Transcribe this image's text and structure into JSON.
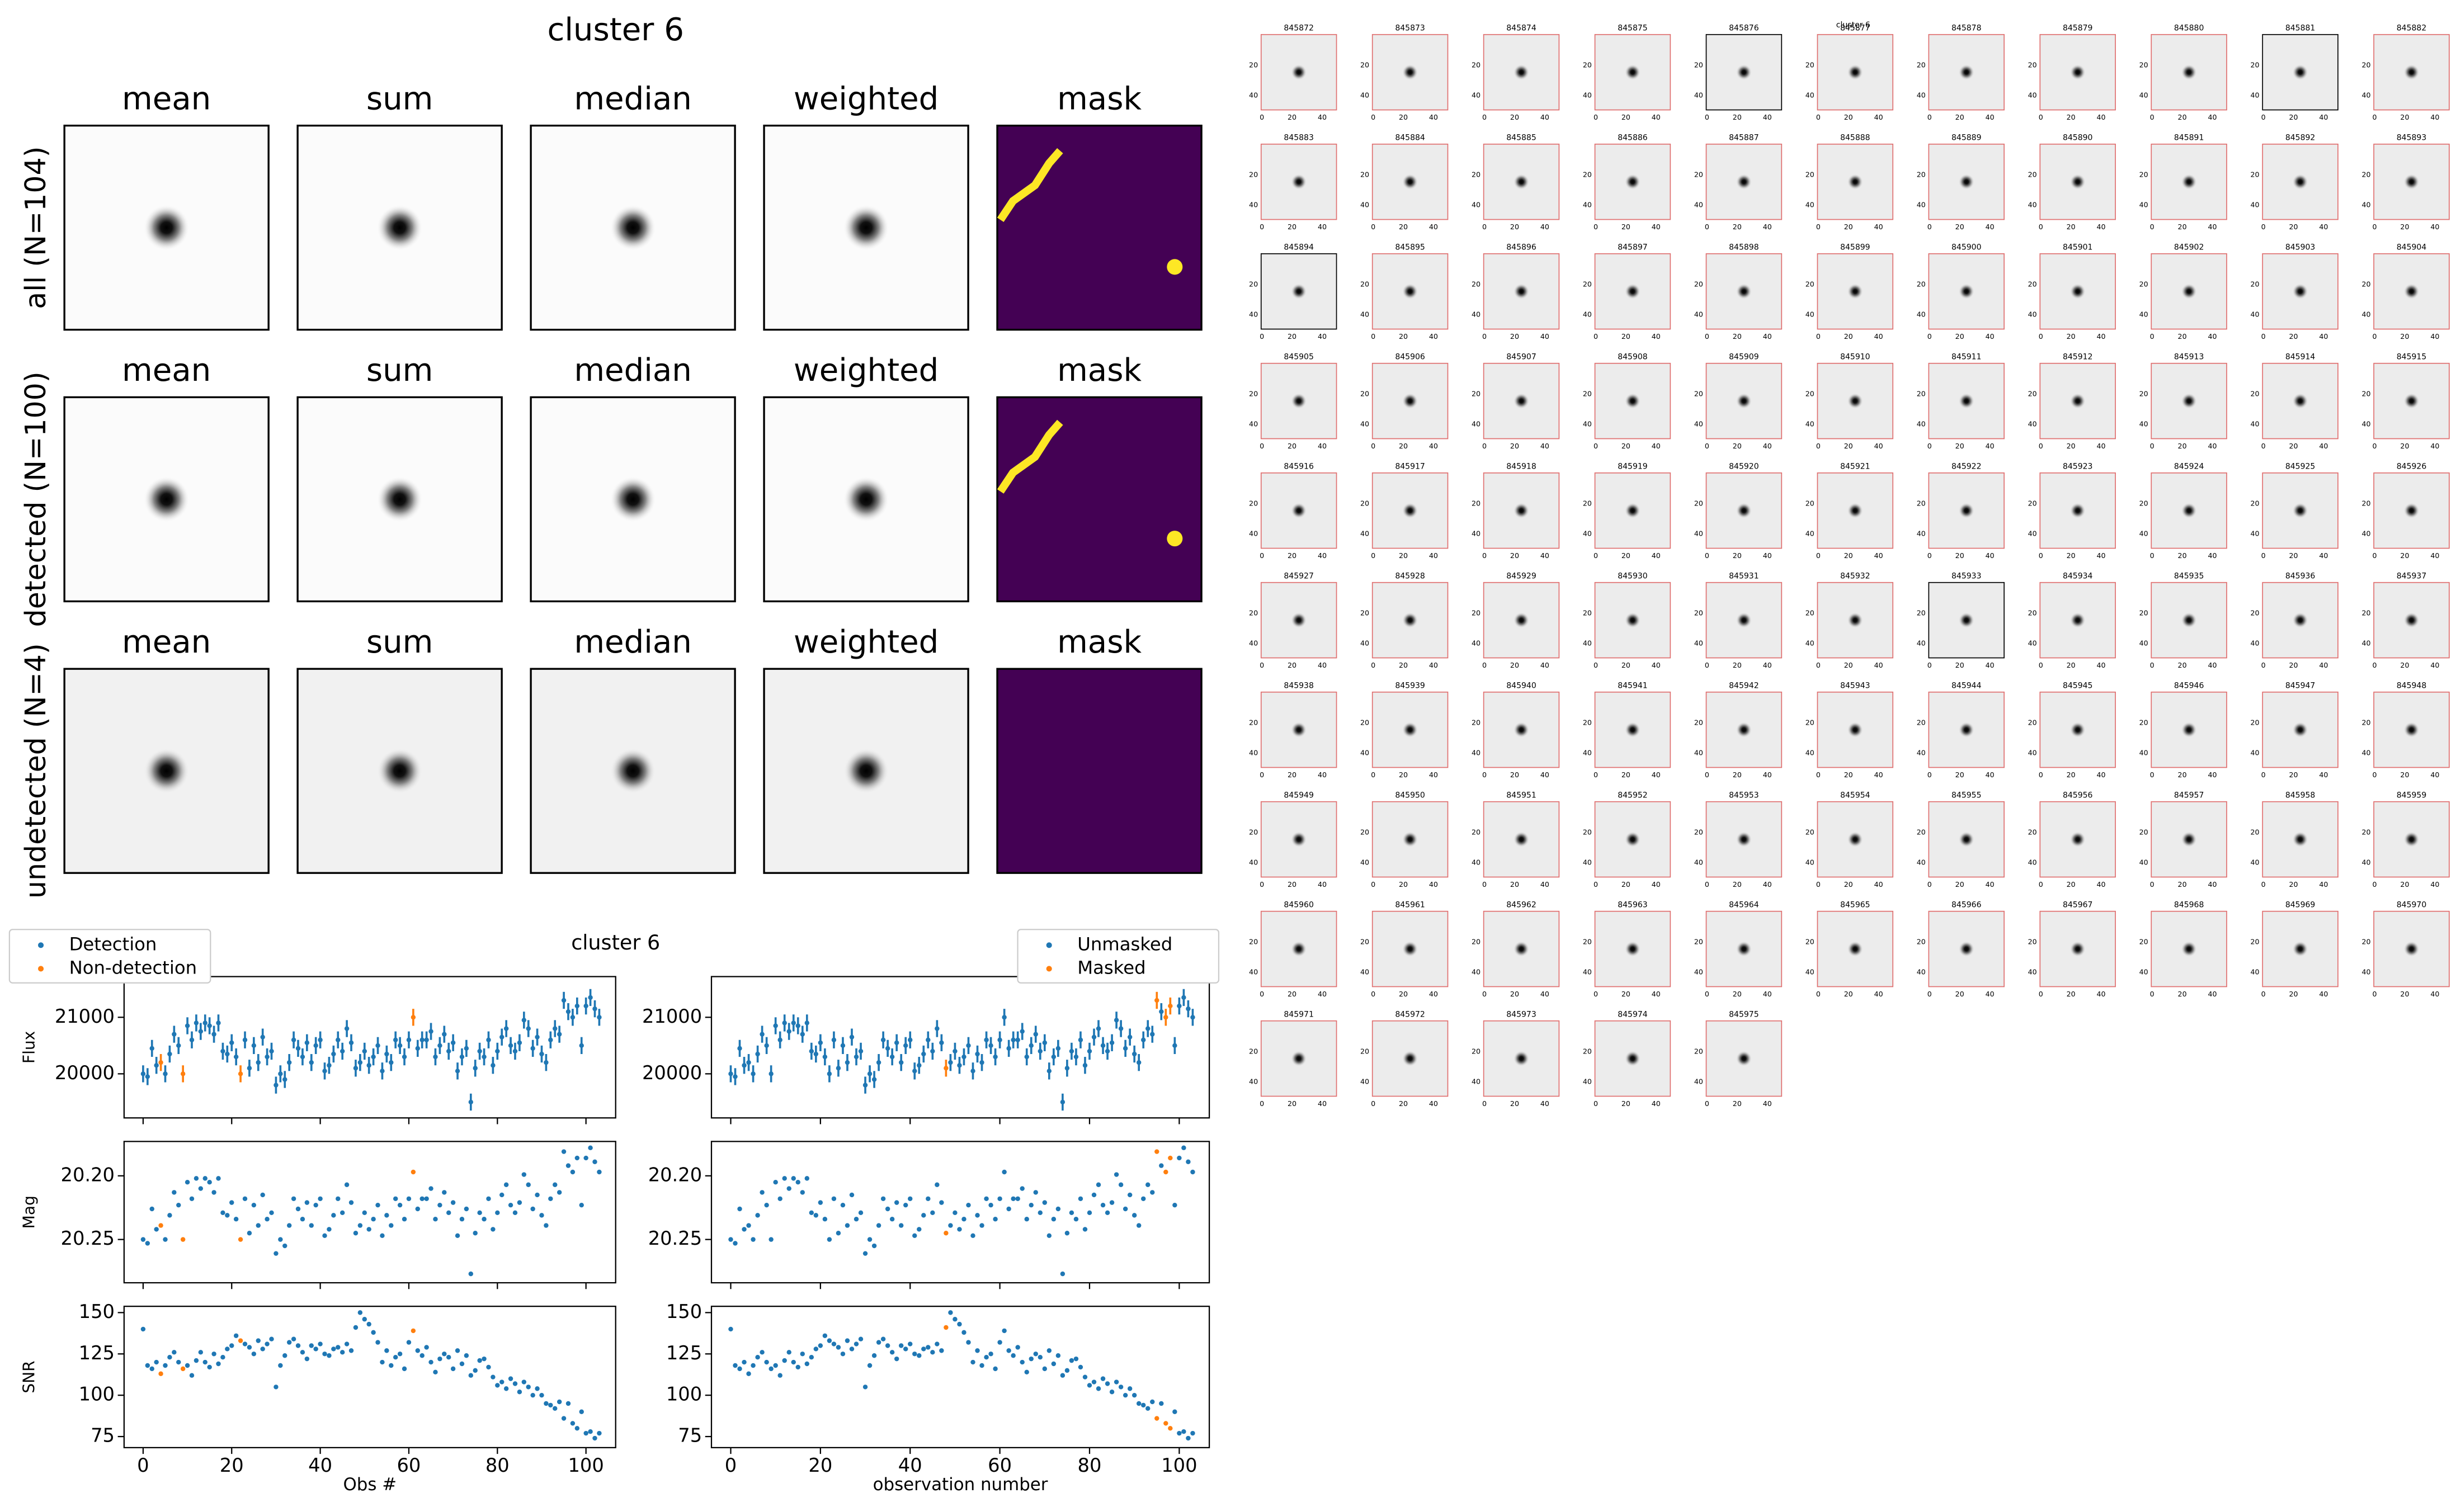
{
  "stack": {
    "title": "cluster 6",
    "columns": [
      "mean",
      "sum",
      "median",
      "weighted",
      "mask"
    ],
    "rows": [
      "all (N=104)",
      "detected (N=100)",
      "undetected (N=4)"
    ]
  },
  "chart_data": {
    "type": "scatter",
    "title": "cluster 6",
    "x": [
      0,
      1,
      2,
      3,
      4,
      5,
      6,
      7,
      8,
      9,
      10,
      11,
      12,
      13,
      14,
      15,
      16,
      17,
      18,
      19,
      20,
      21,
      22,
      23,
      24,
      25,
      26,
      27,
      28,
      29,
      30,
      31,
      32,
      33,
      34,
      35,
      36,
      37,
      38,
      39,
      40,
      41,
      42,
      43,
      44,
      45,
      46,
      47,
      48,
      49,
      50,
      51,
      52,
      53,
      54,
      55,
      56,
      57,
      58,
      59,
      60,
      61,
      62,
      63,
      64,
      65,
      66,
      67,
      68,
      69,
      70,
      71,
      72,
      73,
      74,
      75,
      76,
      77,
      78,
      79,
      80,
      81,
      82,
      83,
      84,
      85,
      86,
      87,
      88,
      89,
      90,
      91,
      92,
      93,
      94,
      95,
      96,
      97,
      98,
      99,
      100,
      101,
      102,
      103
    ],
    "xlim": [
      -4.3,
      106.7
    ],
    "xticks": [
      0,
      20,
      40,
      60,
      80,
      100
    ],
    "panels": [
      {
        "ylabel": "Flux",
        "ylim": [
          19220,
          21720
        ],
        "yticks": [
          20000,
          21000
        ],
        "values": [
          20000,
          19950,
          20450,
          20150,
          20200,
          20000,
          20350,
          20700,
          20500,
          20000,
          20850,
          20600,
          20900,
          20750,
          20900,
          20850,
          20700,
          20900,
          20400,
          20350,
          20550,
          20300,
          20000,
          20600,
          20100,
          20500,
          20200,
          20650,
          20300,
          20400,
          19800,
          20000,
          19900,
          20200,
          20600,
          20450,
          20300,
          20550,
          20200,
          20500,
          20600,
          20050,
          20150,
          20350,
          20600,
          20400,
          20800,
          20550,
          20100,
          20200,
          20400,
          20150,
          20300,
          20500,
          20050,
          20350,
          20200,
          20600,
          20500,
          20300,
          20600,
          21000,
          20450,
          20600,
          20600,
          20750,
          20300,
          20500,
          20700,
          20400,
          20550,
          20050,
          20300,
          20450,
          19500,
          20100,
          20400,
          20300,
          20600,
          20150,
          20400,
          20650,
          20800,
          20500,
          20400,
          20550,
          20950,
          20800,
          20450,
          20650,
          20350,
          20200,
          20600,
          20800,
          20700,
          21300,
          21100,
          21000,
          21200,
          20500,
          21200,
          21350,
          21150,
          21000
        ],
        "errors": [
          150,
          150,
          150,
          150,
          150,
          150,
          150,
          150,
          150,
          150,
          150,
          150,
          150,
          150,
          150,
          150,
          150,
          150,
          150,
          150,
          150,
          150,
          150,
          150,
          150,
          150,
          150,
          150,
          150,
          150,
          150,
          150,
          150,
          150,
          150,
          150,
          150,
          150,
          150,
          150,
          150,
          150,
          150,
          150,
          150,
          150,
          150,
          150,
          150,
          150,
          150,
          150,
          150,
          150,
          150,
          150,
          150,
          150,
          150,
          150,
          150,
          150,
          150,
          150,
          150,
          150,
          150,
          150,
          150,
          150,
          150,
          150,
          150,
          150,
          150,
          150,
          150,
          150,
          150,
          150,
          150,
          150,
          150,
          150,
          150,
          150,
          150,
          150,
          150,
          150,
          150,
          150,
          150,
          150,
          150,
          150,
          150,
          150,
          150,
          150,
          150,
          150,
          150,
          150
        ]
      },
      {
        "ylabel": "Mag",
        "ylim": [
          20.284,
          20.173
        ],
        "yticks": [
          {
            "value": 20.2,
            "label": "20.20"
          },
          20.25
        ],
        "values": [
          20.25,
          20.253,
          20.226,
          20.242,
          20.239,
          20.25,
          20.231,
          20.213,
          20.223,
          20.25,
          20.205,
          20.218,
          20.202,
          20.21,
          20.202,
          20.205,
          20.213,
          20.202,
          20.229,
          20.231,
          20.221,
          20.234,
          20.25,
          20.218,
          20.245,
          20.223,
          20.239,
          20.215,
          20.234,
          20.229,
          20.261,
          20.25,
          20.255,
          20.239,
          20.218,
          20.226,
          20.234,
          20.221,
          20.239,
          20.223,
          20.218,
          20.247,
          20.242,
          20.231,
          20.218,
          20.229,
          20.207,
          20.221,
          20.245,
          20.239,
          20.229,
          20.242,
          20.234,
          20.223,
          20.247,
          20.231,
          20.239,
          20.218,
          20.223,
          20.234,
          20.218,
          20.197,
          20.226,
          20.218,
          20.218,
          20.21,
          20.234,
          20.223,
          20.213,
          20.229,
          20.221,
          20.247,
          20.234,
          20.226,
          20.277,
          20.245,
          20.229,
          20.234,
          20.218,
          20.242,
          20.229,
          20.215,
          20.207,
          20.223,
          20.229,
          20.221,
          20.199,
          20.207,
          20.226,
          20.215,
          20.231,
          20.239,
          20.218,
          20.207,
          20.213,
          20.181,
          20.192,
          20.197,
          20.186,
          20.223,
          20.186,
          20.178,
          20.189,
          20.197
        ]
      },
      {
        "ylabel": "SNR",
        "ylim": [
          68.3,
          153.8
        ],
        "yticks": [
          75,
          100,
          125,
          150
        ],
        "values": [
          140,
          118,
          116,
          120,
          113,
          118,
          123,
          126,
          120,
          116,
          118,
          112,
          121,
          126,
          120,
          117,
          125,
          119,
          123,
          128,
          130,
          136,
          133,
          131,
          129,
          125,
          133,
          128,
          131,
          134,
          105,
          118,
          124,
          132,
          134,
          130,
          126,
          122,
          130,
          128,
          131,
          125,
          124,
          128,
          129,
          126,
          131,
          127,
          141,
          150,
          146,
          143,
          138,
          132,
          120,
          127,
          118,
          123,
          125,
          116,
          132,
          139,
          127,
          124,
          129,
          120,
          114,
          122,
          125,
          123,
          116,
          127,
          119,
          124,
          112,
          115,
          121,
          122,
          117,
          111,
          106,
          108,
          104,
          110,
          107,
          102,
          108,
          105,
          100,
          104,
          100,
          95,
          94,
          92,
          96,
          86,
          95,
          83,
          80,
          90,
          77,
          78,
          74,
          77
        ]
      }
    ],
    "views": [
      {
        "xlabel": "Obs #",
        "legend": "upper left",
        "series": [
          {
            "name": "Detection",
            "color": "#1f77b4"
          },
          {
            "name": "Non-detection",
            "color": "#ff7f0e",
            "x": [
              4,
              9,
              22,
              61
            ]
          }
        ]
      },
      {
        "xlabel": "observation number",
        "legend": "upper right",
        "series": [
          {
            "name": "Unmasked",
            "color": "#1f77b4"
          },
          {
            "name": "Masked",
            "color": "#ff7f0e",
            "x": [
              48,
              95,
              97,
              98
            ]
          }
        ]
      }
    ]
  },
  "stamps": {
    "title": "cluster 6",
    "detected_border": "#e07070",
    "undetected_border": "#000000",
    "xticks": [
      0,
      20,
      40
    ],
    "yticks": [
      20,
      40
    ],
    "ids": [
      "845872",
      "845873",
      "845874",
      "845875",
      "845876",
      "845877",
      "845878",
      "845879",
      "845880",
      "845881",
      "845882",
      "845883",
      "845884",
      "845885",
      "845886",
      "845887",
      "845888",
      "845889",
      "845890",
      "845891",
      "845892",
      "845893",
      "845894",
      "845895",
      "845896",
      "845897",
      "845898",
      "845899",
      "845900",
      "845901",
      "845902",
      "845903",
      "845904",
      "845905",
      "845906",
      "845907",
      "845908",
      "845909",
      "845910",
      "845911",
      "845912",
      "845913",
      "845914",
      "845915",
      "845916",
      "845917",
      "845918",
      "845919",
      "845920",
      "845921",
      "845922",
      "845923",
      "845924",
      "845925",
      "845926",
      "845927",
      "845928",
      "845929",
      "845930",
      "845931",
      "845932",
      "845933",
      "845934",
      "845935",
      "845936",
      "845937",
      "845938",
      "845939",
      "845940",
      "845941",
      "845942",
      "845943",
      "845944",
      "845945",
      "845946",
      "845947",
      "845948",
      "845949",
      "845950",
      "845951",
      "845952",
      "845953",
      "845954",
      "845955",
      "845956",
      "845957",
      "845958",
      "845959",
      "845960",
      "845961",
      "845962",
      "845963",
      "845964",
      "845965",
      "845966",
      "845967",
      "845968",
      "845969",
      "845970",
      "845971",
      "845972",
      "845973",
      "845974",
      "845975"
    ]
  }
}
